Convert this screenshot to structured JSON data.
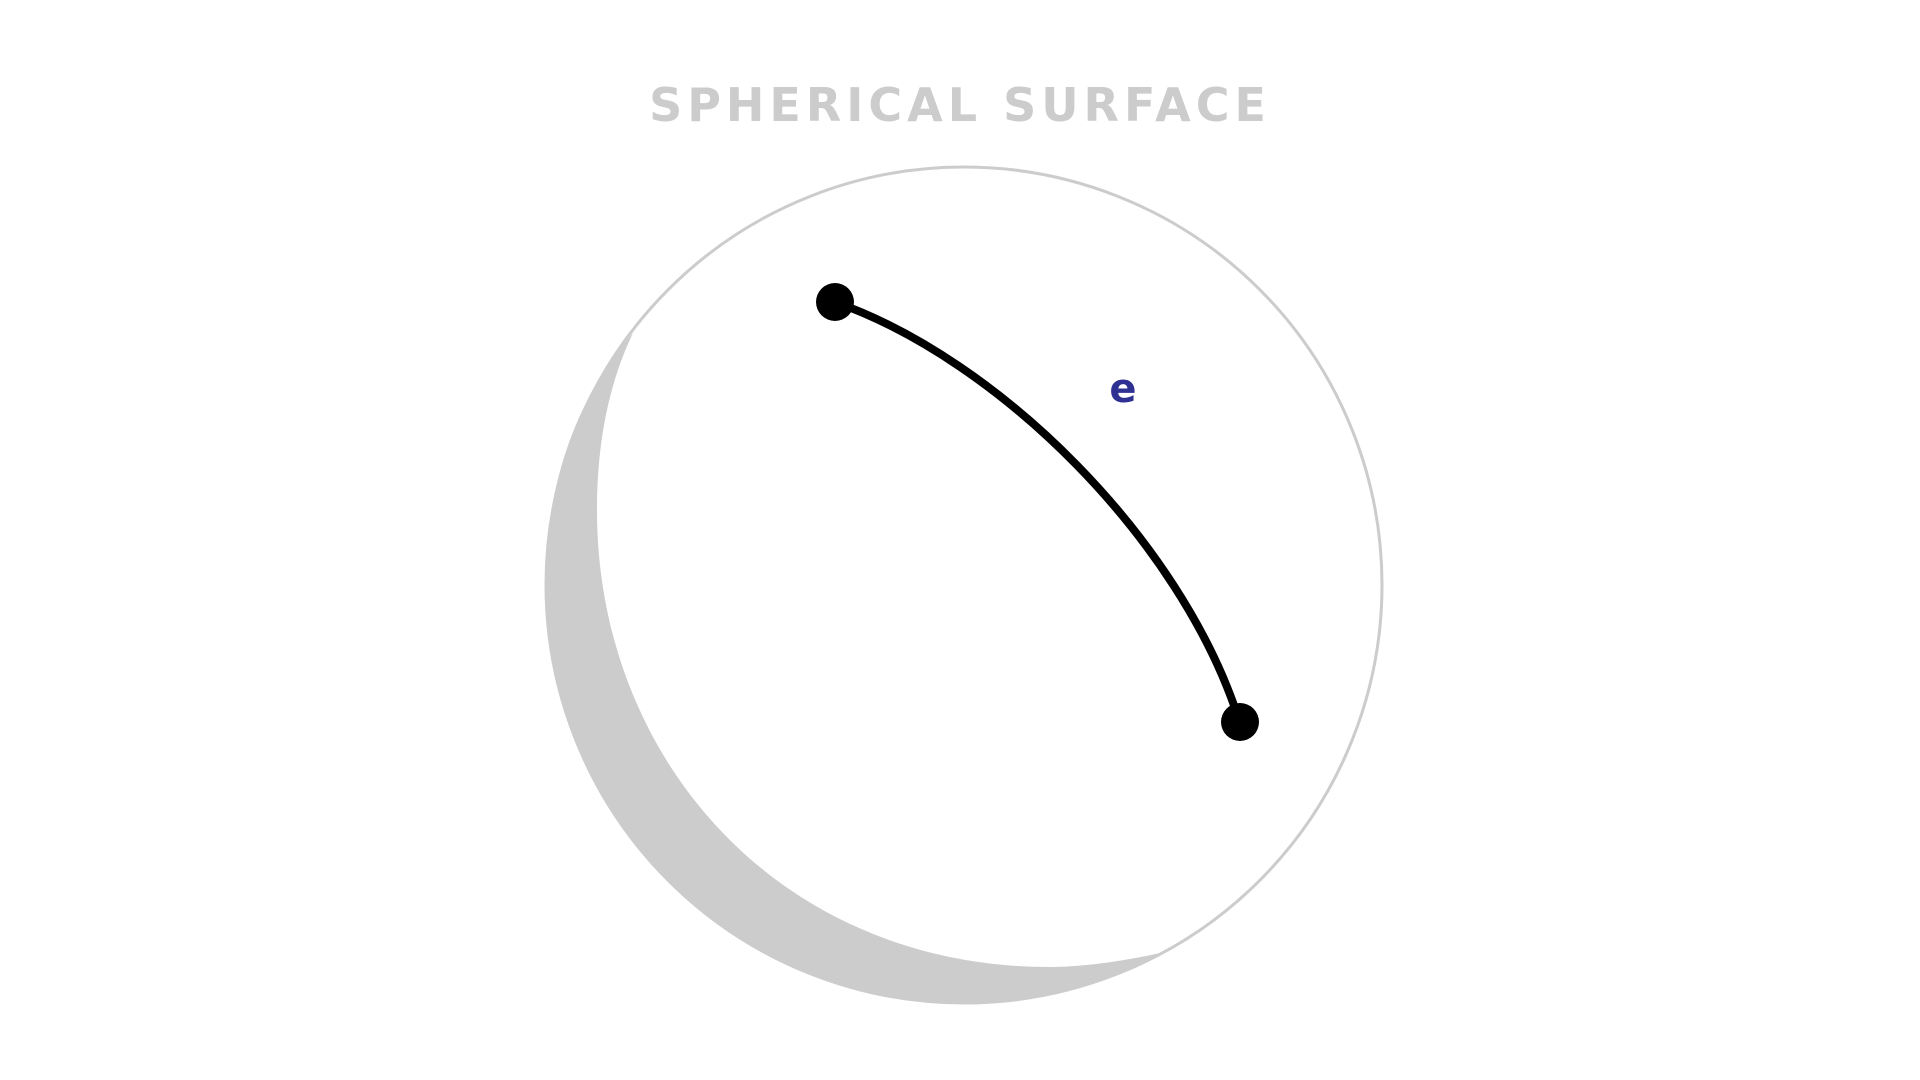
{
  "title": "SPHERICAL SURFACE",
  "edge_label": "e",
  "colors": {
    "title": "#cccccc",
    "sphere_outline": "#cccccc",
    "sphere_shadow": "#cccccc",
    "geodesic": "#000000",
    "vertex": "#000000",
    "edge_label": "#2e3192",
    "background": "#ffffff"
  }
}
